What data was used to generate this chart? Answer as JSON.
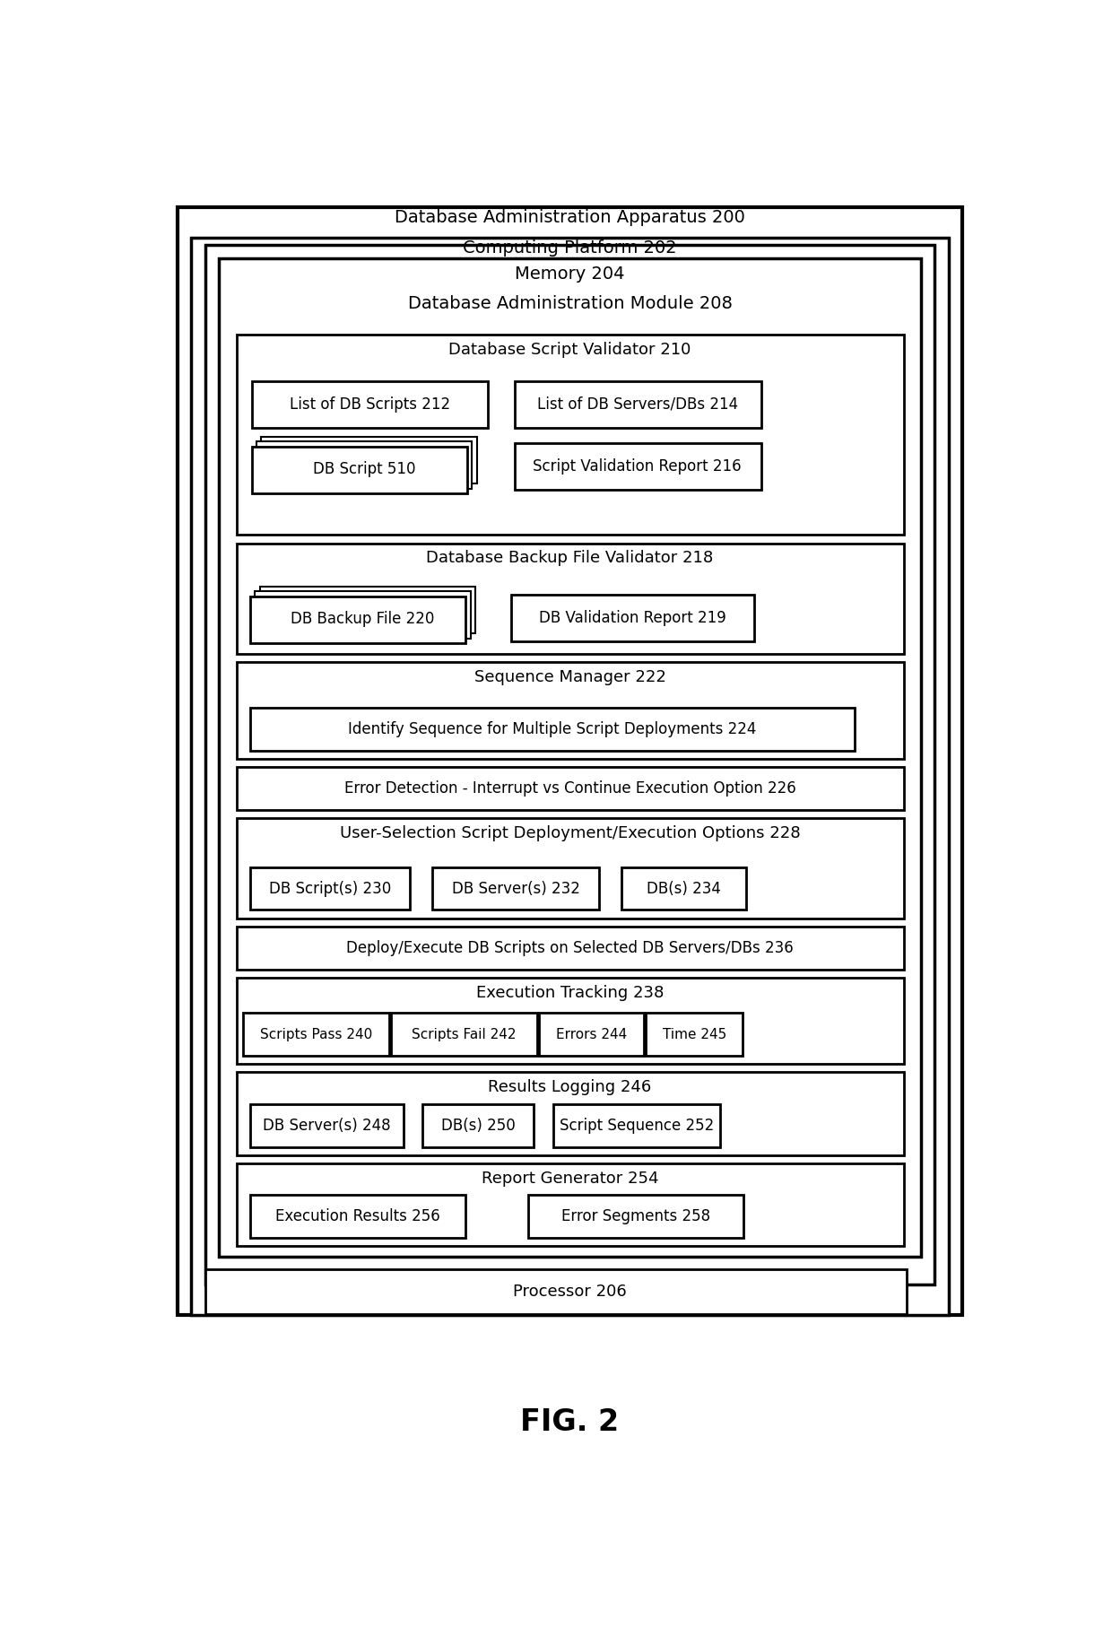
{
  "fig_label": "FIG. 2",
  "apparatus_label": "Database Administration Apparatus 200",
  "platform_label": "Computing Platform 202",
  "memory_label": "Memory 204",
  "dam_label": "Database Administration Module 208",
  "dsv_label": "Database Script Validator 210",
  "list_scripts_label": "List of DB Scripts 212",
  "list_servers_label": "List of DB Servers/DBs 214",
  "db_script_510_label": "DB Script 510",
  "script_val_report_label": "Script Validation Report 216",
  "dbfv_label": "Database Backup File Validator 218",
  "db_backup_label": "DB Backup File 220",
  "db_val_report_label": "DB Validation Report 219",
  "seq_mgr_label": "Sequence Manager 222",
  "identify_seq_label": "Identify Sequence for Multiple Script Deployments 224",
  "error_detect_label": "Error Detection - Interrupt vs Continue Execution Option 226",
  "user_sel_label": "User-Selection Script Deployment/Execution Options 228",
  "db_scripts_230_label": "DB Script(s) 230",
  "db_servers_232_label": "DB Server(s) 232",
  "dbs_234_label": "DB(s) 234",
  "deploy_label": "Deploy/Execute DB Scripts on Selected DB Servers/DBs 236",
  "exec_track_label": "Execution Tracking 238",
  "scripts_pass_label": "Scripts Pass 240",
  "scripts_fail_label": "Scripts Fail 242",
  "errors_244_label": "Errors 244",
  "time_245_label": "Time 245",
  "results_log_label": "Results Logging 246",
  "db_server_248_label": "DB Server(s) 248",
  "dbs_250_label": "DB(s) 250",
  "script_seq_252_label": "Script Sequence 252",
  "report_gen_label": "Report Generator 254",
  "exec_results_label": "Execution Results 256",
  "error_seg_label": "Error Segments 258",
  "processor_label": "Processor 206"
}
